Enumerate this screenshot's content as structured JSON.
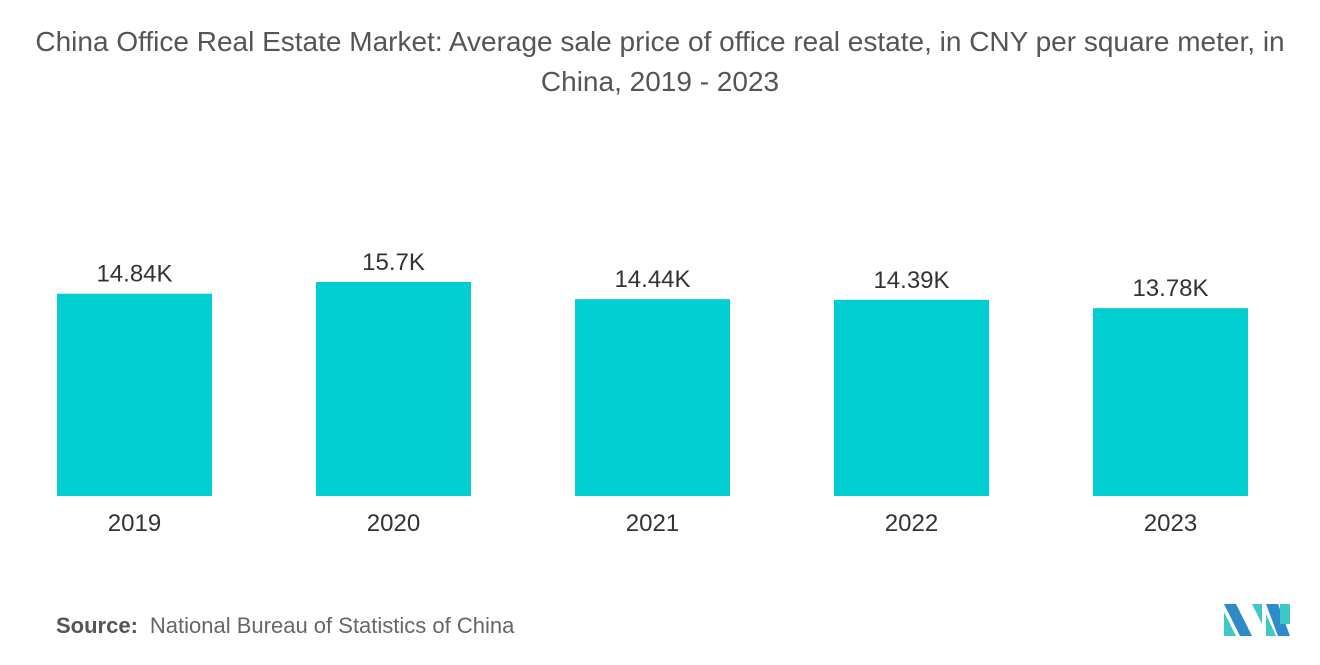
{
  "chart_data": {
    "type": "bar",
    "title": "China Office Real Estate Market: Average sale price of office real estate, in CNY per square meter, in China, 2019 - 2023",
    "categories": [
      "2019",
      "2020",
      "2021",
      "2022",
      "2023"
    ],
    "values": [
      14840,
      15700,
      14440,
      14390,
      13780
    ],
    "data_labels": [
      "14.84K",
      "15.7K",
      "14.44K",
      "14.39K",
      "13.78K"
    ],
    "xlabel": "",
    "ylabel": "",
    "ylim": [
      0,
      15700
    ],
    "grid": false,
    "bar_color": "#00CED1"
  },
  "source": {
    "label": "Source:",
    "text": "National Bureau of Statistics of China"
  },
  "logo": {
    "name": "Mordor Intelligence logo",
    "colors": [
      "#2E8BC9",
      "#3CC8C8"
    ]
  }
}
